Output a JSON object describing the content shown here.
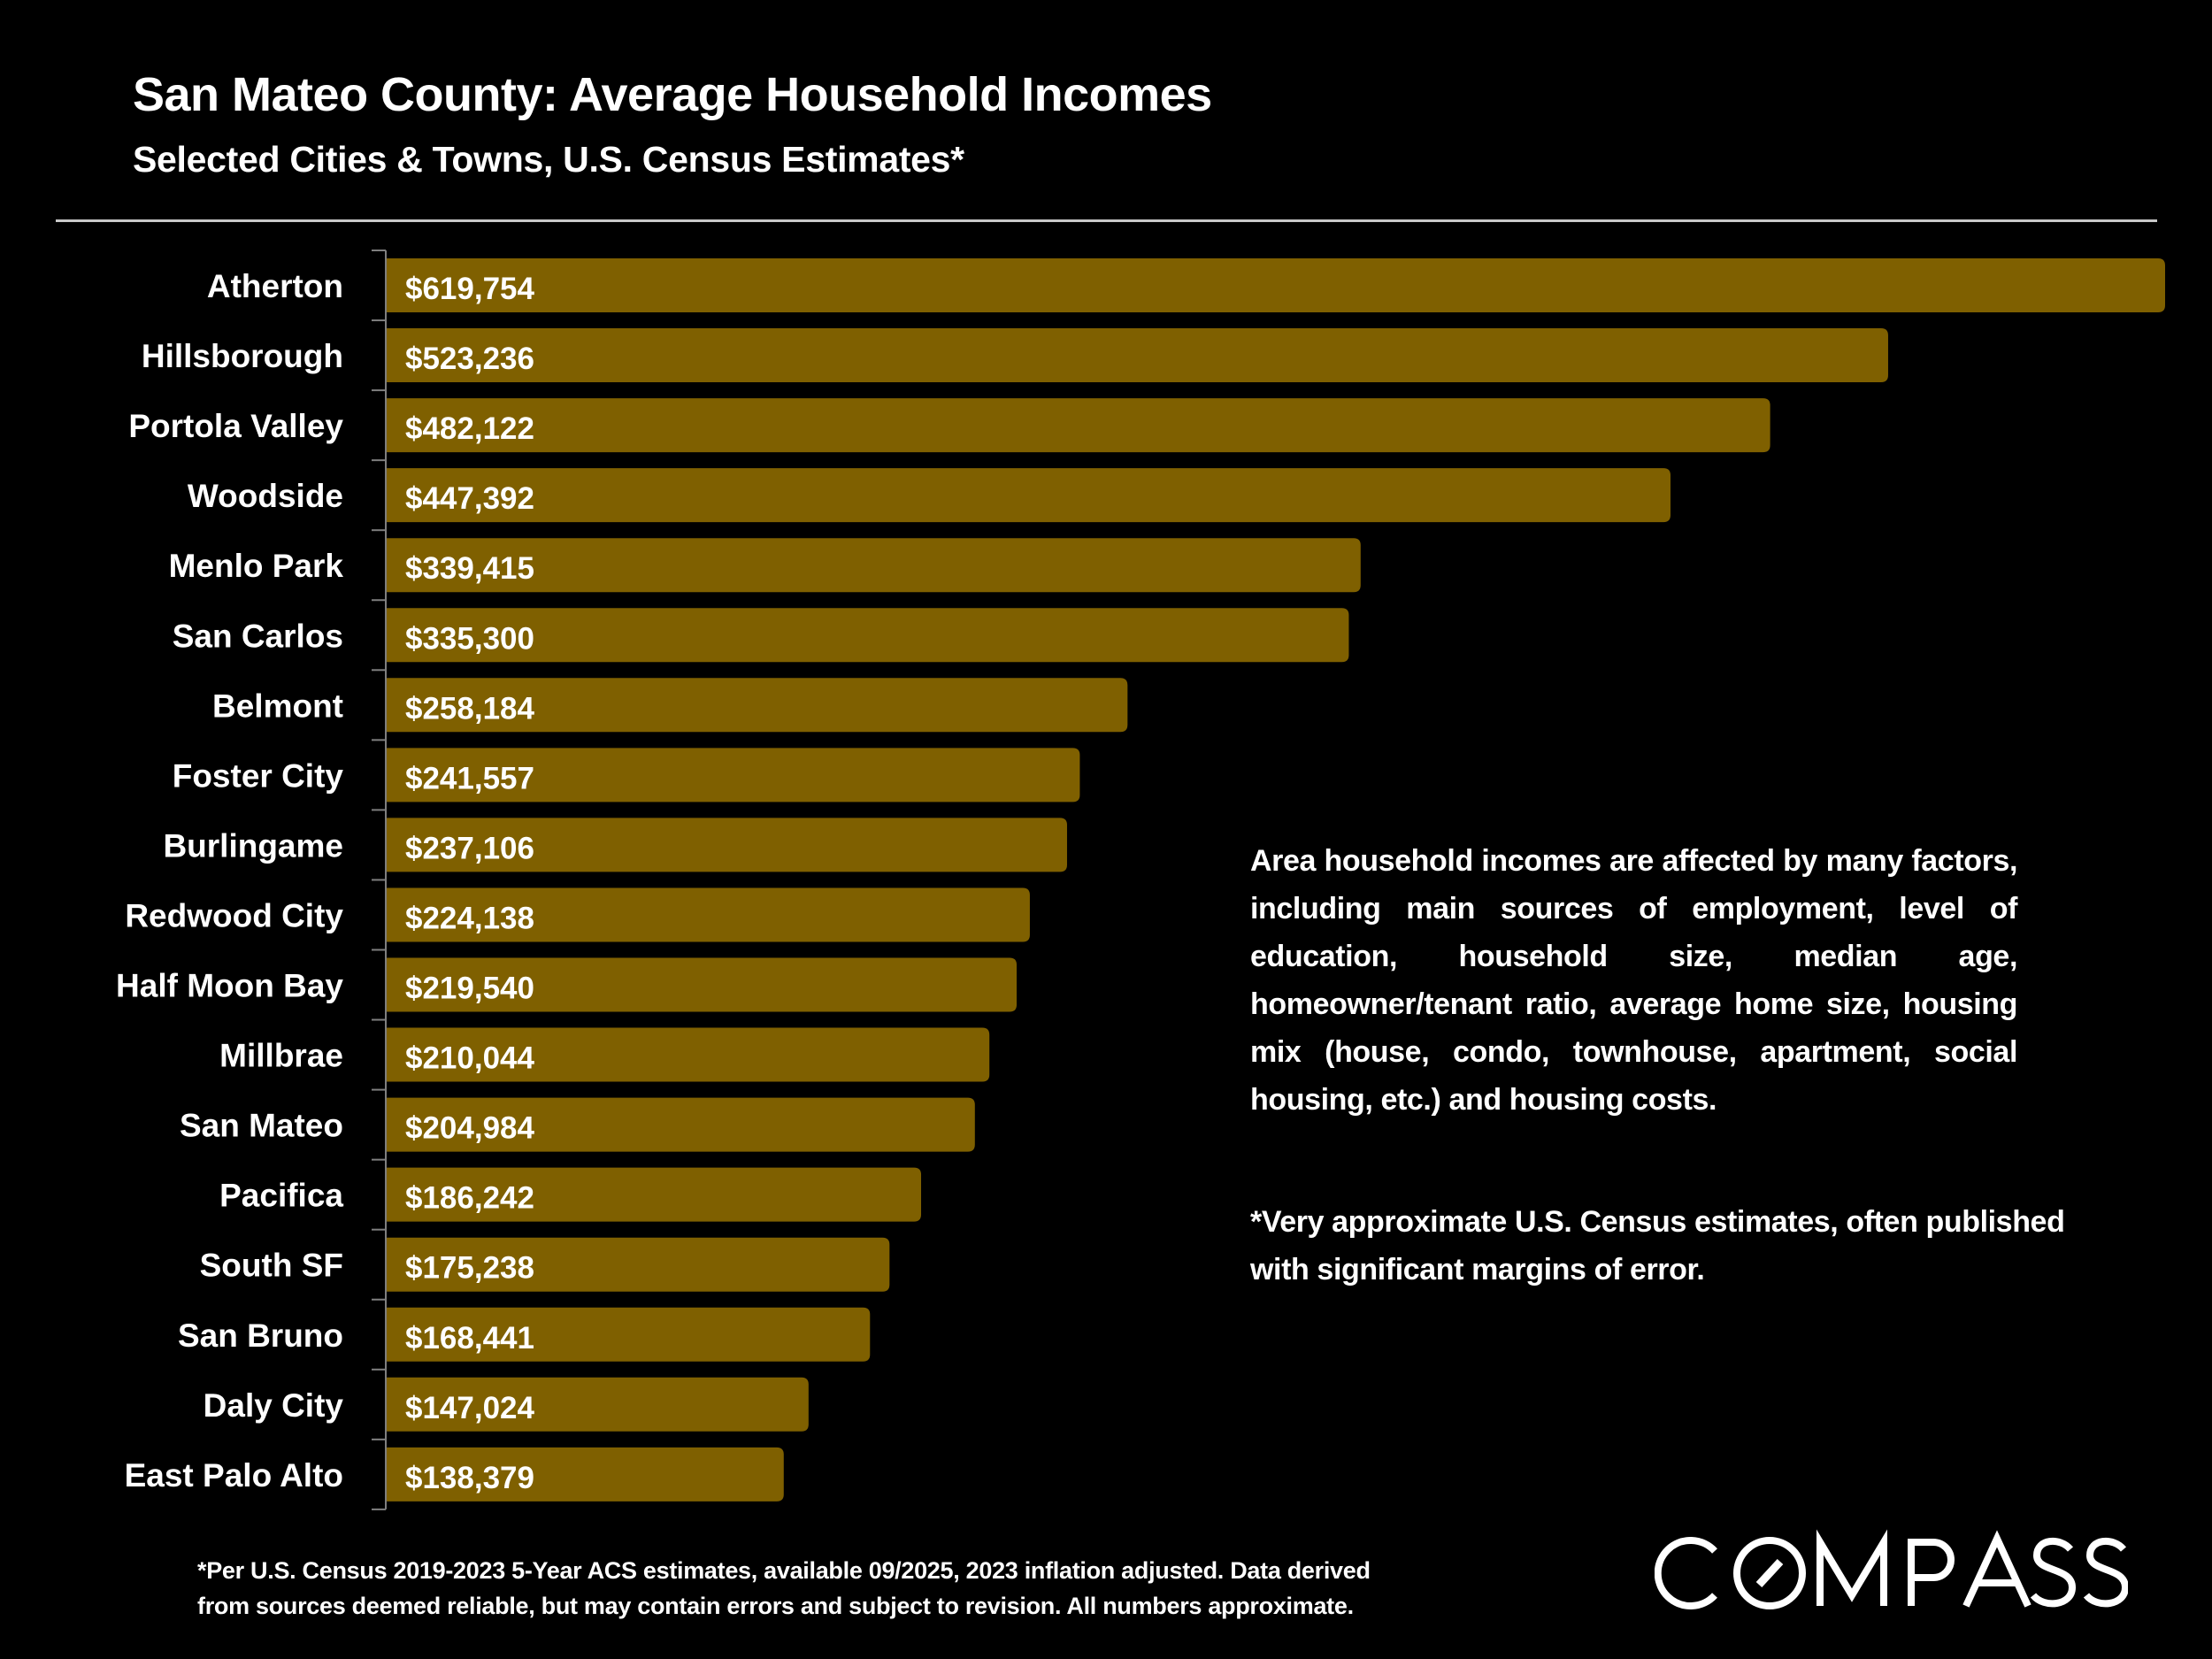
{
  "header": {
    "title": "San Mateo County: Average Household Incomes",
    "subtitle": "Selected Cities & Towns, U.S. Census Estimates*"
  },
  "notes": {
    "paragraph_1": "Area household incomes are affected by many factors, including main sources of employment, level of education, household size, median age, homeowner/tenant ratio, average home size, housing mix (house, condo, townhouse, apartment, social housing, etc.) and housing costs.",
    "paragraph_2": "*Very approximate U.S. Census estimates, often published with significant margins of error."
  },
  "footer": {
    "source_line_1": "*Per U.S. Census 2019-2023 5-Year ACS estimates, available 09/2025, 2023 inflation adjusted. Data derived",
    "source_line_2": "from sources deemed reliable, but may contain errors and subject to revision. All numbers approximate."
  },
  "brand": {
    "logo_text": "COMPASS",
    "logo_icon": "compass-o-slash-icon"
  },
  "colors": {
    "background": "#000000",
    "bar": "#7F6000",
    "text": "#FFFFFF",
    "rule": "#C8C8C8",
    "axis": "#7F7F7F"
  },
  "chart_data": {
    "type": "bar",
    "orientation": "horizontal",
    "title": "San Mateo County: Average Household Incomes",
    "subtitle": "Selected Cities & Towns, U.S. Census Estimates*",
    "xlabel": "",
    "ylabel": "",
    "grid": false,
    "legend": "none",
    "xlim": [
      0,
      619754
    ],
    "categories": [
      "Atherton",
      "Hillsborough",
      "Portola Valley",
      "Woodside",
      "Menlo Park",
      "San Carlos",
      "Belmont",
      "Foster City",
      "Burlingame",
      "Redwood City",
      "Half Moon Bay",
      "Millbrae",
      "San Mateo",
      "Pacifica",
      "South SF",
      "San Bruno",
      "Daly City",
      "East Palo Alto"
    ],
    "values": [
      619754,
      523236,
      482122,
      447392,
      339415,
      335300,
      258184,
      241557,
      237106,
      224138,
      219540,
      210044,
      204984,
      186242,
      175238,
      168441,
      147024,
      138379
    ],
    "value_labels": [
      "$619,754",
      "$523,236",
      "$482,122",
      "$447,392",
      "$339,415",
      "$335,300",
      "$258,184",
      "$241,557",
      "$237,106",
      "$224,138",
      "$219,540",
      "$210,044",
      "$204,984",
      "$186,242",
      "$175,238",
      "$168,441",
      "$147,024",
      "$138,379"
    ]
  }
}
